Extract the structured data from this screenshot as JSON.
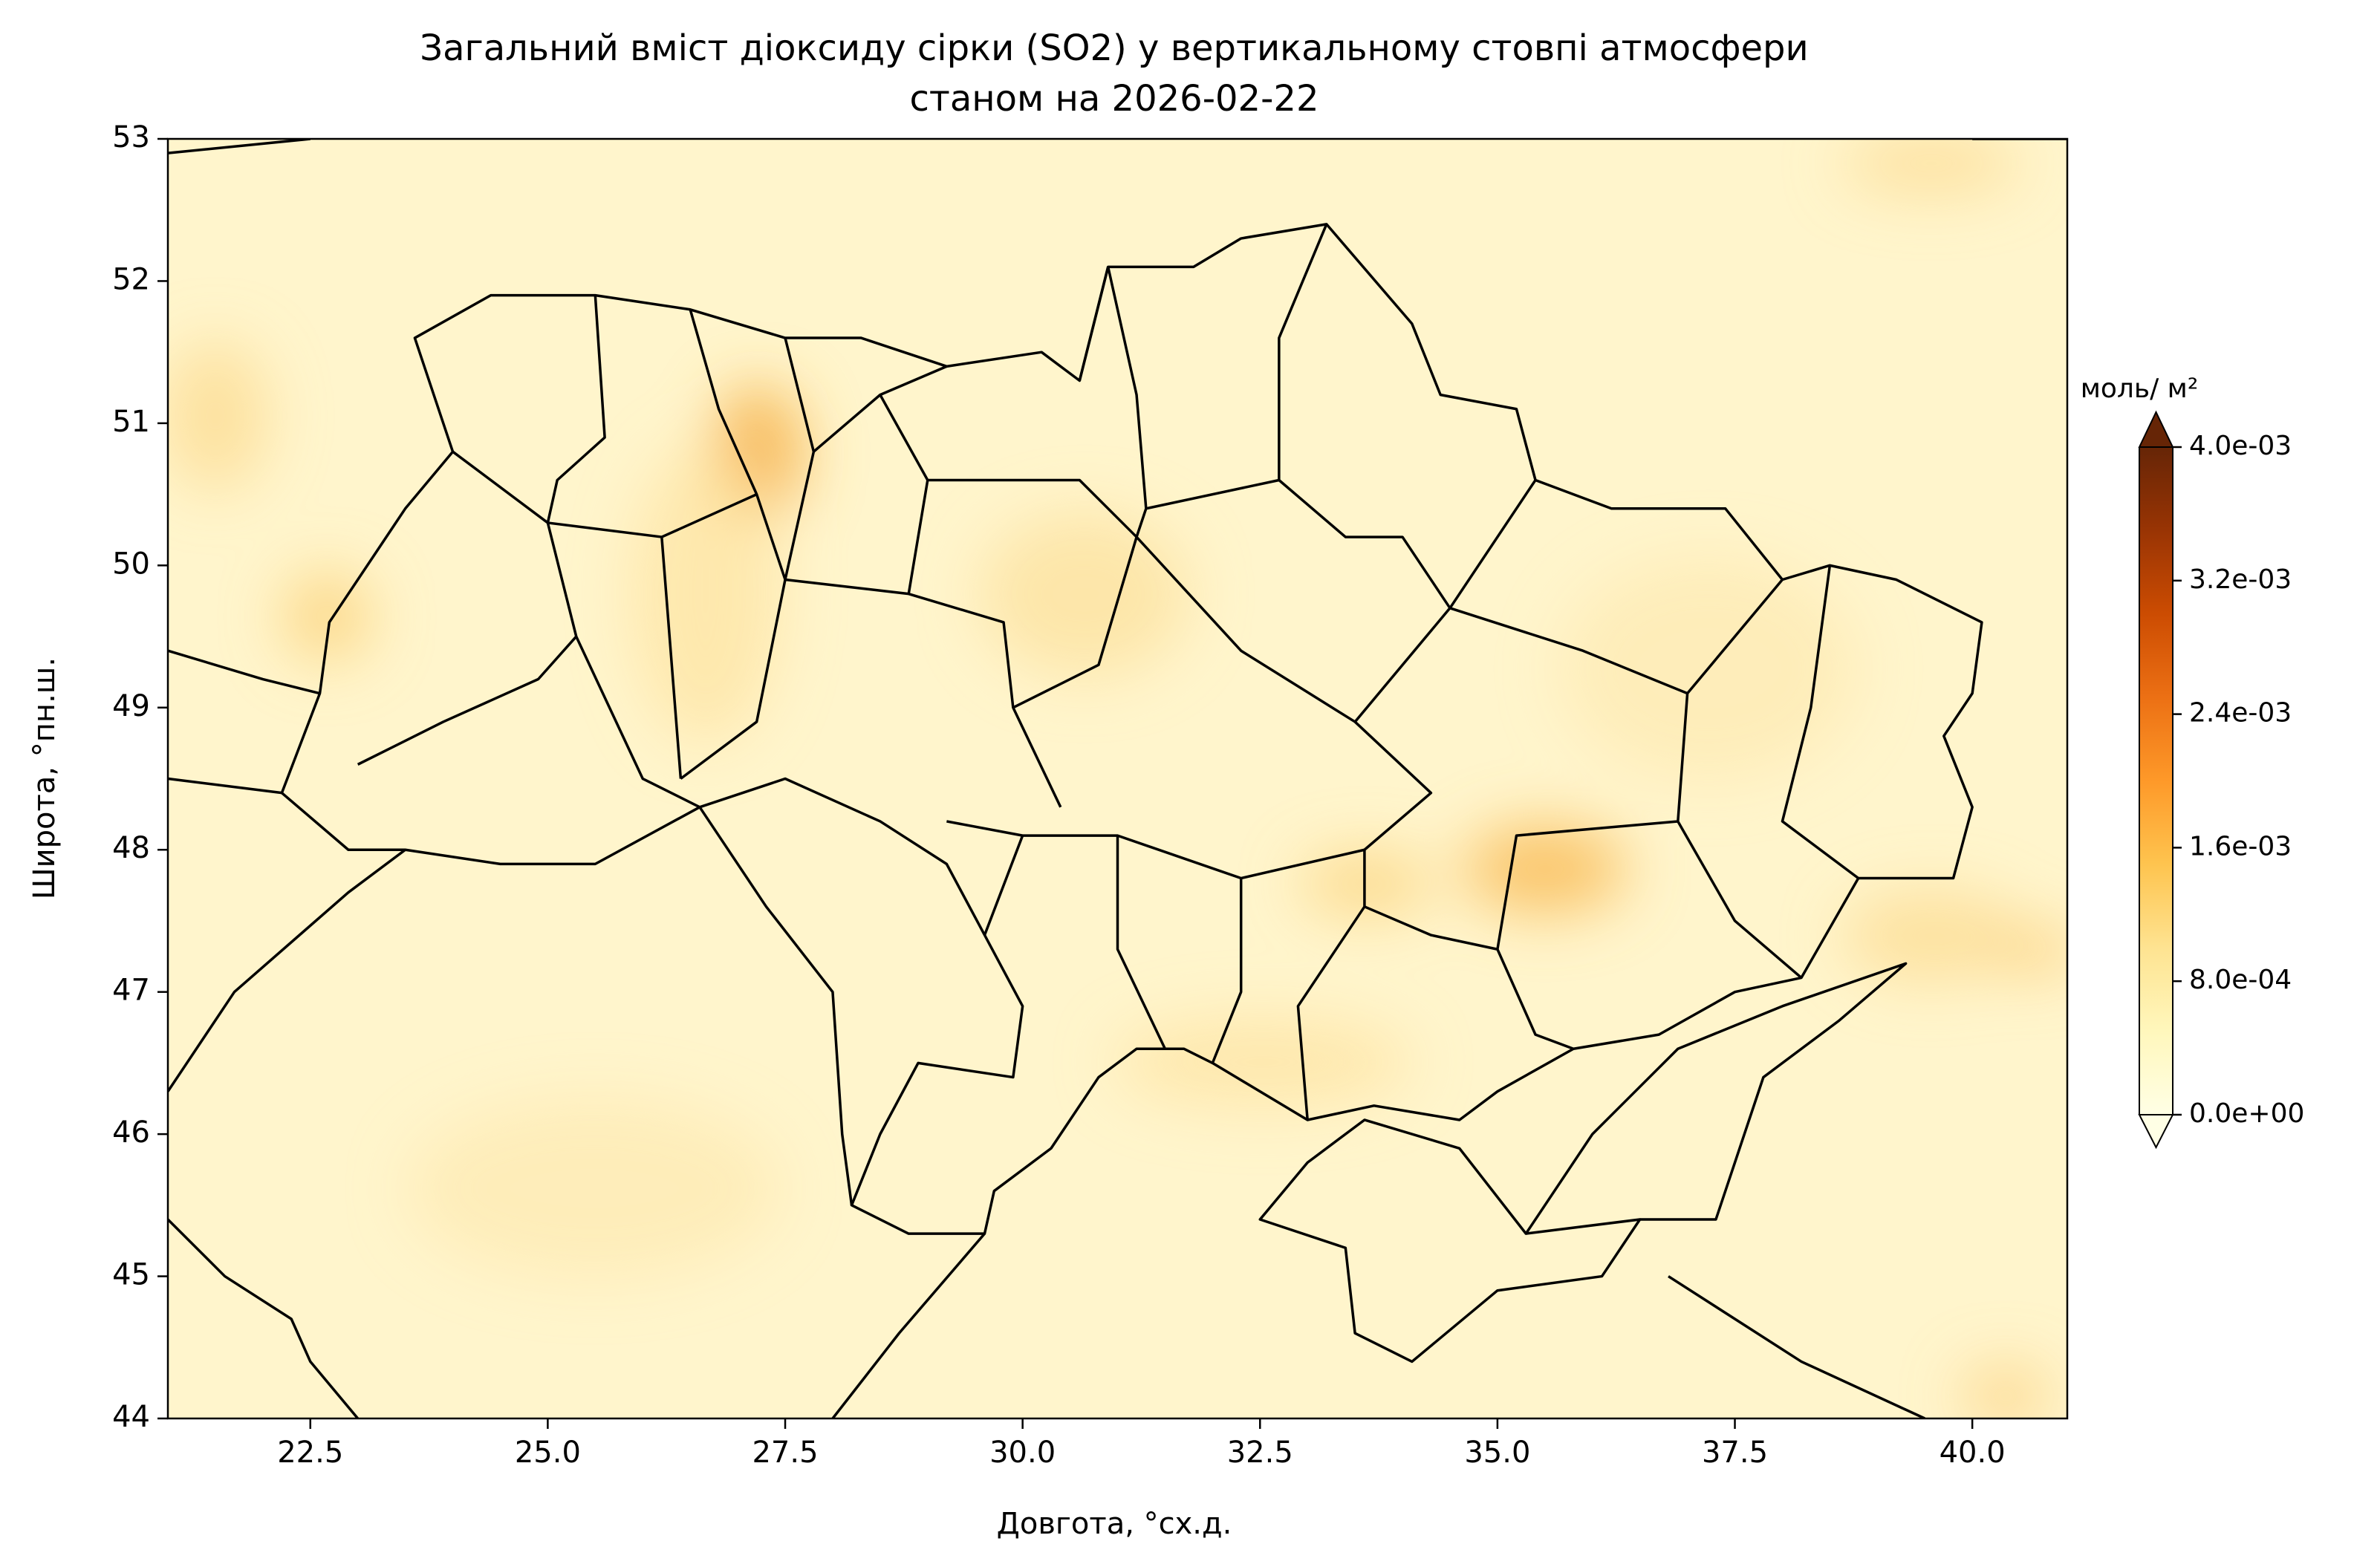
{
  "chart_data": {
    "type": "map",
    "title": "Загальний вміст діоксиду сірки (SO2) у вертикальному стовпі атмосфери",
    "subtitle": "станом на 2026-02-22",
    "x_label": "Довгота, °сх.д.",
    "y_label": "Широта, °пн.ш.",
    "xlim": [
      21,
      41
    ],
    "ylim": [
      44,
      53
    ],
    "xticks": [
      22.5,
      {
        "value": 25,
        "label": "25.0"
      },
      27.5,
      {
        "value": 30,
        "label": "30.0"
      },
      32.5,
      {
        "value": 35,
        "label": "35.0"
      },
      37.5,
      {
        "value": 40,
        "label": "40.0"
      }
    ],
    "yticks": [
      44,
      45,
      46,
      47,
      48,
      49,
      50,
      51,
      52,
      53
    ],
    "colorbar": {
      "label": "моль/ м²",
      "lim": [
        0,
        0.004
      ],
      "ticks": [
        {
          "value": 0,
          "label": "0.0e+00"
        },
        {
          "value": 0.0008,
          "label": "8.0e-04"
        },
        {
          "value": 0.0016,
          "label": "1.6e-03"
        },
        {
          "value": 0.0024,
          "label": "2.4e-03"
        },
        {
          "value": 0.0032,
          "label": "3.2e-03"
        },
        {
          "value": 0.004,
          "label": "4.0e-03"
        }
      ],
      "colors": [
        "#ffffe5",
        "#fff7bc",
        "#fee391",
        "#fec44f",
        "#fe9929",
        "#ec7014",
        "#cc4c02",
        "#993404",
        "#662506"
      ]
    }
  }
}
